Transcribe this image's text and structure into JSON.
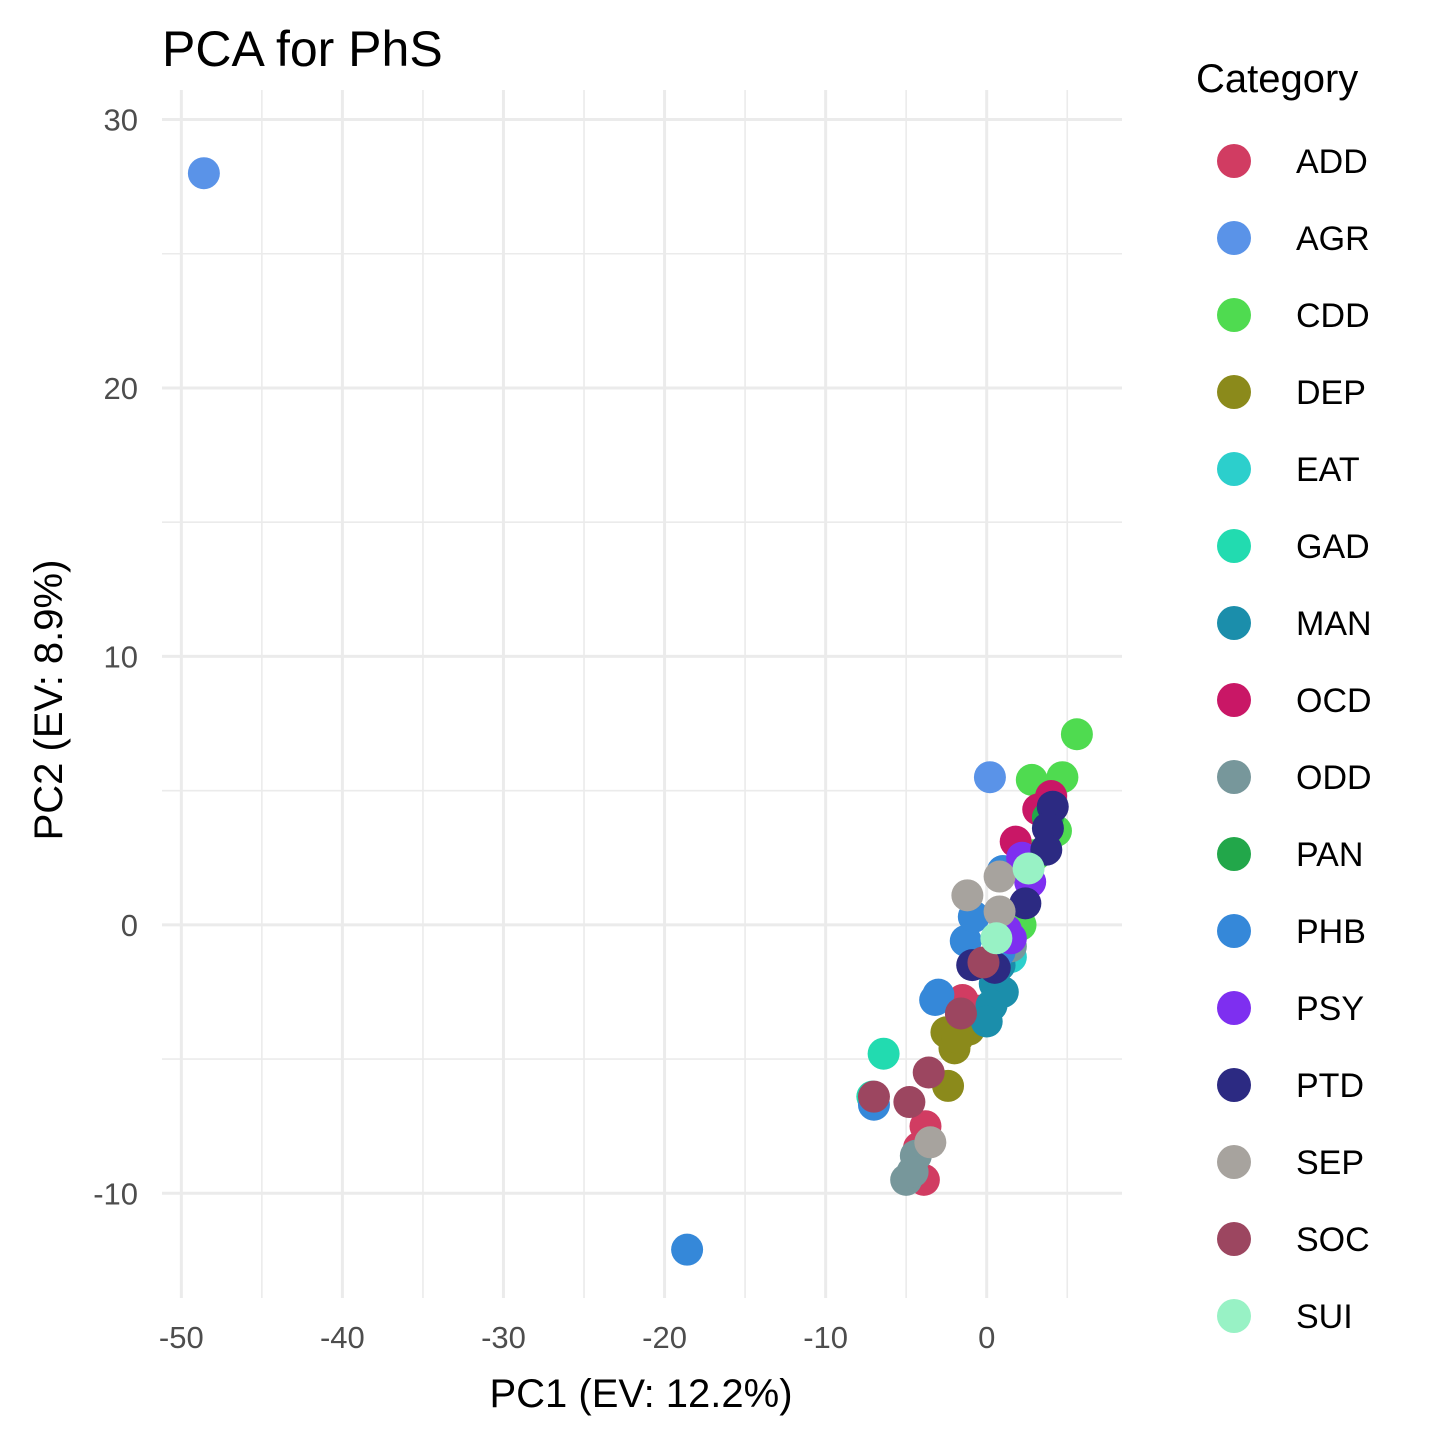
{
  "chart_data": {
    "type": "scatter",
    "title": "PCA for PhS",
    "xlabel": "PC1 (EV: 12.2%)",
    "ylabel": "PC2 (EV: 8.9%)",
    "xlim": [
      -51.2,
      8.4
    ],
    "ylim": [
      -13.9,
      31.1
    ],
    "x_ticks": [
      -50,
      -40,
      -30,
      -20,
      -10,
      0
    ],
    "y_ticks": [
      -10,
      0,
      10,
      20,
      30
    ],
    "grid": true,
    "legend": {
      "title": "Category",
      "position": "right"
    },
    "series": [
      {
        "name": "ADD",
        "color": "#d13c62",
        "points": [
          [
            -1.5,
            -2.8
          ],
          [
            -0.5,
            -3.2
          ],
          [
            -3.8,
            -7.5
          ],
          [
            -4.2,
            -8.3
          ],
          [
            -3.9,
            -9.5
          ],
          [
            3.5,
            4.2
          ]
        ]
      },
      {
        "name": "AGR",
        "color": "#5a93e8",
        "points": [
          [
            -48.6,
            28.0
          ],
          [
            0.2,
            5.5
          ],
          [
            1.0,
            2.0
          ]
        ]
      },
      {
        "name": "CDD",
        "color": "#4fdb50",
        "points": [
          [
            5.6,
            7.1
          ],
          [
            4.7,
            5.5
          ],
          [
            2.8,
            5.4
          ],
          [
            4.3,
            3.5
          ],
          [
            2.1,
            0.0
          ],
          [
            3.0,
            2.6
          ]
        ]
      },
      {
        "name": "DEP",
        "color": "#8b8a1b",
        "points": [
          [
            -2.5,
            -4.0
          ],
          [
            -1.1,
            -3.9
          ],
          [
            -2.0,
            -4.6
          ],
          [
            -2.4,
            -6.0
          ],
          [
            -1.8,
            -4.2
          ]
        ]
      },
      {
        "name": "EAT",
        "color": "#2ccfcc",
        "points": [
          [
            1.5,
            -1.2
          ]
        ]
      },
      {
        "name": "GAD",
        "color": "#22dbb0",
        "points": [
          [
            -6.4,
            -4.8
          ],
          [
            -7.1,
            -6.4
          ]
        ]
      },
      {
        "name": "MAN",
        "color": "#1b8eab",
        "points": [
          [
            0.5,
            -2.2
          ],
          [
            1.0,
            -2.5
          ],
          [
            0.3,
            -3.0
          ],
          [
            0.0,
            -3.6
          ],
          [
            0.8,
            -1.5
          ]
        ]
      },
      {
        "name": "OCD",
        "color": "#c91766",
        "points": [
          [
            4.0,
            4.8
          ],
          [
            3.2,
            4.3
          ],
          [
            1.8,
            3.1
          ]
        ]
      },
      {
        "name": "ODD",
        "color": "#77979b",
        "points": [
          [
            -4.4,
            -8.6
          ],
          [
            -5.0,
            -9.5
          ],
          [
            -4.6,
            -9.2
          ],
          [
            1.5,
            -0.8
          ]
        ]
      },
      {
        "name": "PAN",
        "color": "#22a74a",
        "points": [
          [
            3.8,
            4.0
          ]
        ]
      },
      {
        "name": "PHB",
        "color": "#3588d9",
        "points": [
          [
            -18.6,
            -12.1
          ],
          [
            -7.0,
            -6.7
          ],
          [
            -3.0,
            -2.6
          ],
          [
            -3.2,
            -2.8
          ],
          [
            -1.3,
            -0.6
          ],
          [
            -0.8,
            0.3
          ],
          [
            1.0,
            2.0
          ],
          [
            0.8,
            -1.0
          ]
        ]
      },
      {
        "name": "PSY",
        "color": "#7e2ff0",
        "points": [
          [
            2.2,
            2.5
          ],
          [
            2.7,
            1.6
          ],
          [
            1.5,
            -0.5
          ],
          [
            1.2,
            -0.2
          ]
        ]
      },
      {
        "name": "PTD",
        "color": "#2c2a82",
        "points": [
          [
            4.1,
            4.4
          ],
          [
            3.8,
            3.6
          ],
          [
            3.7,
            2.8
          ],
          [
            2.4,
            0.8
          ],
          [
            -0.9,
            -1.5
          ],
          [
            0.5,
            -1.6
          ]
        ]
      },
      {
        "name": "SEP",
        "color": "#a7a39e",
        "points": [
          [
            -1.2,
            1.1
          ],
          [
            0.8,
            1.8
          ],
          [
            0.8,
            0.5
          ],
          [
            -3.5,
            -8.1
          ]
        ]
      },
      {
        "name": "SOC",
        "color": "#9c4660",
        "points": [
          [
            -7.0,
            -6.4
          ],
          [
            -4.8,
            -6.6
          ],
          [
            -3.6,
            -5.5
          ],
          [
            -1.6,
            -3.3
          ],
          [
            -0.2,
            -1.4
          ]
        ]
      },
      {
        "name": "SUI",
        "color": "#98f2c5",
        "points": [
          [
            2.6,
            2.1
          ],
          [
            0.6,
            -0.5
          ]
        ]
      }
    ]
  }
}
